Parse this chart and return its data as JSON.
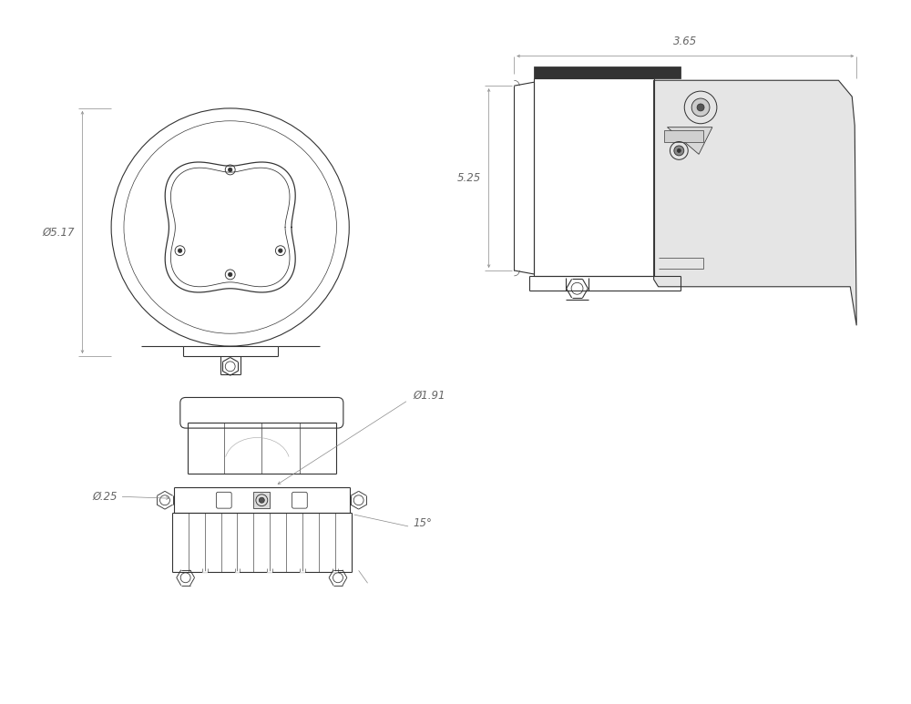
{
  "bg_color": "#ffffff",
  "line_color": "#333333",
  "dim_color": "#888888",
  "text_color": "#666666",
  "dim_517": "Ø5.17",
  "dim_365": "3.65",
  "dim_525": "5.25",
  "dim_191": "Ø1.91",
  "dim_25": "Ø.25",
  "dim_15": "15°",
  "lw_main": 0.8,
  "lw_dim": 0.5,
  "font_size": 8.5
}
